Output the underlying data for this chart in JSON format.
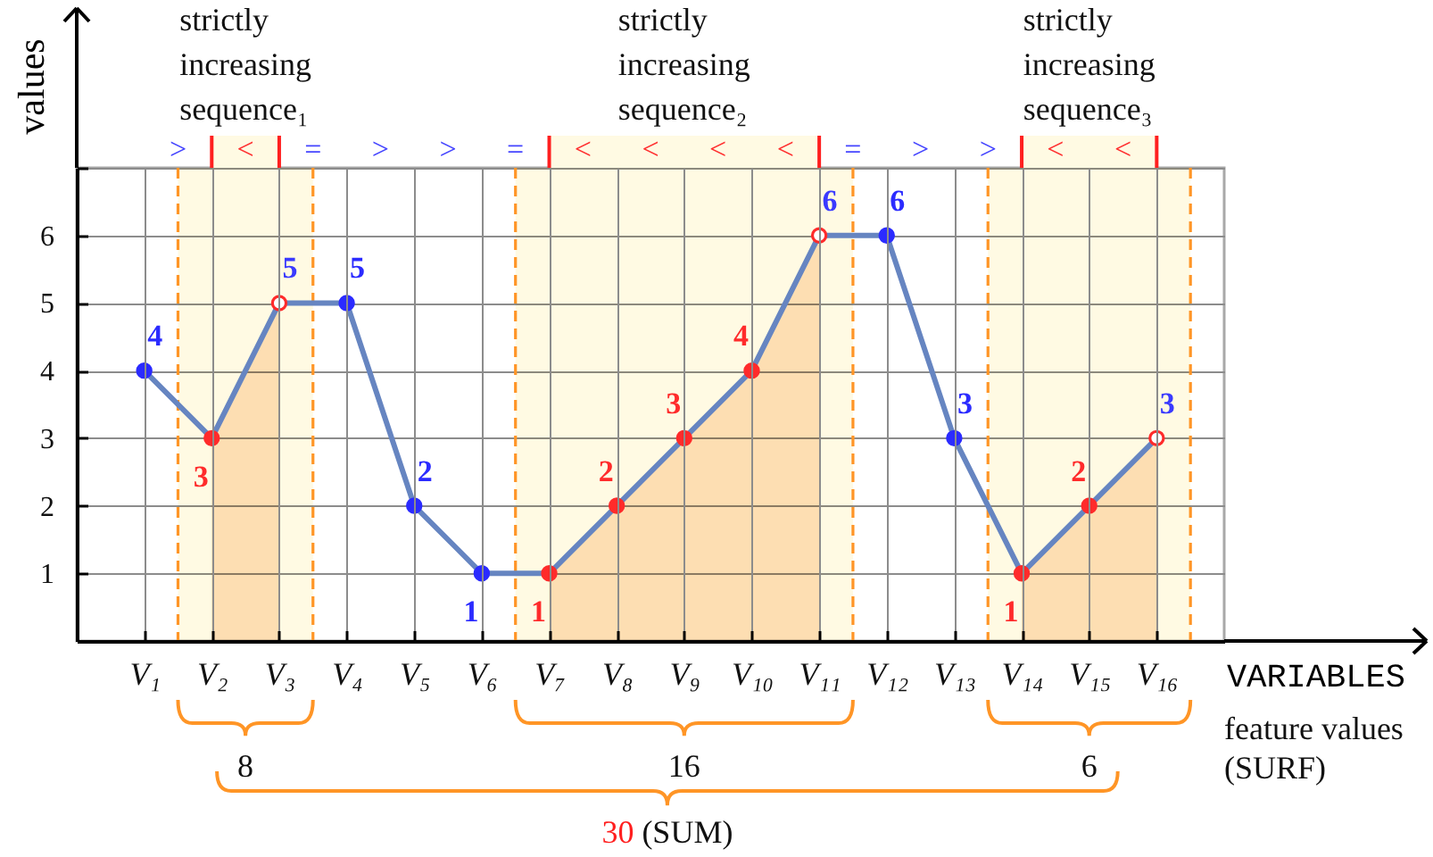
{
  "chart_data": {
    "type": "line",
    "xlabel": "VARIABLES",
    "ylabel": "values",
    "categories": [
      "V₁",
      "V₂",
      "V₃",
      "V₄",
      "V₅",
      "V₆",
      "V₇",
      "V₈",
      "V₉",
      "V₁₀",
      "V₁₁",
      "V₁₂",
      "V₁₃",
      "V₁₄",
      "V₁₅",
      "V₁₆"
    ],
    "series": [
      {
        "color": "#6685c1",
        "marker": "circle",
        "values": [
          4,
          3,
          5,
          5,
          2,
          1,
          1,
          2,
          3,
          4,
          6,
          6,
          3,
          1,
          2,
          3
        ],
        "colors": [
          "#2b2bff",
          "#ff2b2b",
          "#ff2b2b",
          "#2b2bff",
          "#2b2bff",
          "#2b2bff",
          "#ff2b2b",
          "#ff2b2b",
          "#ff2b2b",
          "#ff2b2b",
          "#ff2b2b",
          "#2b2bff",
          "#2b2bff",
          "#ff2b2b",
          "#ff2b2b",
          "#ff2b2b"
        ],
        "value_labels": [
          "4",
          "3",
          "5",
          "5",
          "2",
          "1",
          "1",
          "2",
          "3",
          "4",
          "6",
          "6",
          "3",
          "1",
          "2",
          "3"
        ]
      },
      {
        "type": "area",
        "color": "#fde3c8",
        "values": [
          null,
          3,
          5,
          null,
          null,
          null,
          1,
          2,
          3,
          4,
          6,
          null,
          null,
          1,
          2,
          3
        ]
      }
    ],
    "ylim": [
      0,
      7
    ],
    "yticks": [
      1,
      2,
      3,
      4,
      5,
      6,
      {
        "value": 7,
        "label": null
      }
    ],
    "grid": true,
    "bands": [
      {
        "axis": "x",
        "from": "V₂",
        "to": "V₃",
        "label": "strictly increasing sequence₁",
        "color": "#fffae3"
      },
      {
        "axis": "x",
        "from": "V₇",
        "to": "V₁₁",
        "label": "strictly increasing sequence₂",
        "color": "#fffae3"
      },
      {
        "axis": "x",
        "from": "V₁₄",
        "to": "V₁₆",
        "label": "strictly increasing sequence₃",
        "color": "#fffae3"
      }
    ],
    "annotations": [
      ">",
      "<",
      "=",
      ">",
      ">",
      "=",
      "<",
      "<",
      "<",
      "<",
      "=",
      ">",
      ">",
      "<",
      "<",
      "8",
      "16",
      "6",
      "30 (SUM)",
      "feature values (SURF)"
    ]
  }
}
